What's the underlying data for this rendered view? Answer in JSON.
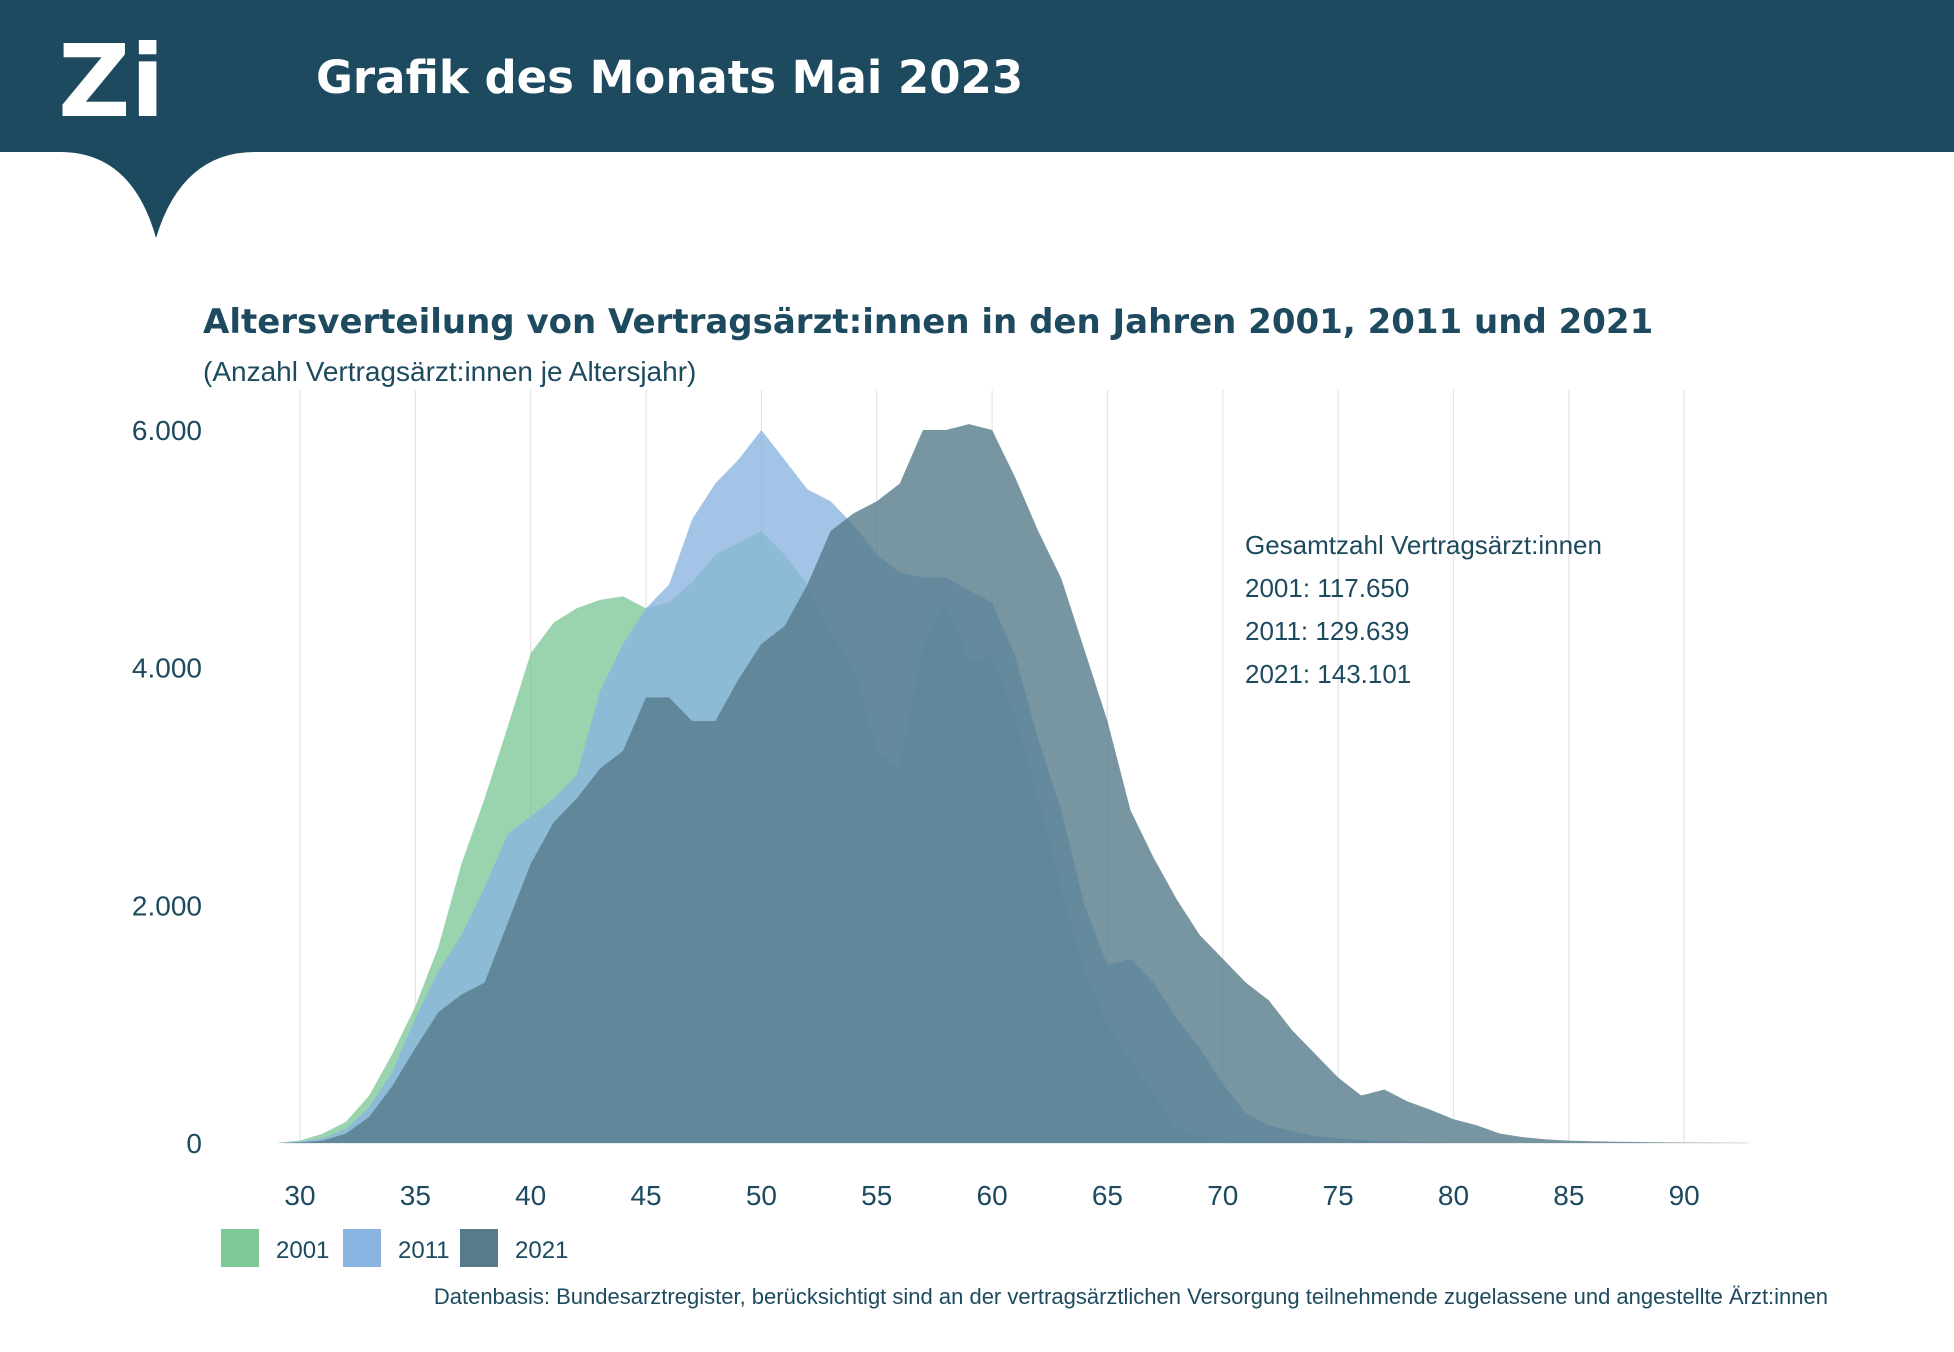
{
  "header": {
    "logo": "Zi",
    "title": "Grafik des Monats Mai 2023"
  },
  "chart_data": {
    "type": "area",
    "title": "Altersverteilung von Vertragsärzt:innen in den Jahren 2001, 2011 und 2021",
    "subtitle": "(Anzahl Vertragsärzt:innen je Altersjahr)",
    "xlabel": "",
    "ylabel": "",
    "xlim": [
      28,
      93
    ],
    "ylim": [
      0,
      6000
    ],
    "x_ticks": [
      30,
      35,
      40,
      45,
      50,
      55,
      60,
      65,
      70,
      75,
      80,
      85,
      90
    ],
    "y_ticks": [
      0,
      2000,
      4000,
      6000
    ],
    "y_tick_labels": [
      "0",
      "2.000",
      "4.000",
      "6.000"
    ],
    "x": [
      29,
      30,
      31,
      32,
      33,
      34,
      35,
      36,
      37,
      38,
      39,
      40,
      41,
      42,
      43,
      44,
      45,
      46,
      47,
      48,
      49,
      50,
      51,
      52,
      53,
      54,
      55,
      56,
      57,
      58,
      59,
      60,
      61,
      62,
      63,
      64,
      65,
      66,
      67,
      68,
      69,
      70,
      71,
      72,
      73,
      74,
      75,
      76,
      77,
      78,
      79,
      80,
      81,
      82,
      83,
      84,
      85,
      86,
      87,
      88,
      89,
      90,
      91,
      92,
      93
    ],
    "series": [
      {
        "name": "2001",
        "color": "#7ec897",
        "values": [
          0,
          20,
          80,
          180,
          400,
          750,
          1150,
          1650,
          2350,
          2900,
          3500,
          4120,
          4380,
          4500,
          4570,
          4600,
          4500,
          4550,
          4720,
          4950,
          5050,
          5150,
          4950,
          4700,
          4300,
          4000,
          3300,
          3150,
          4200,
          4550,
          4050,
          4100,
          3600,
          2900,
          2150,
          1450,
          1000,
          700,
          420,
          120,
          60,
          40,
          25,
          20,
          15,
          10,
          5,
          5,
          3,
          2,
          1,
          0,
          0,
          0,
          0,
          0,
          0,
          0,
          0,
          0,
          0,
          0,
          0,
          0,
          0
        ]
      },
      {
        "name": "2011",
        "color": "#89b3e0",
        "values": [
          0,
          10,
          40,
          120,
          300,
          600,
          1050,
          1450,
          1750,
          2150,
          2600,
          2750,
          2900,
          3100,
          3800,
          4200,
          4500,
          4700,
          5250,
          5550,
          5750,
          6000,
          5750,
          5500,
          5400,
          5200,
          4950,
          4800,
          4760,
          4760,
          4650,
          4550,
          4100,
          3400,
          2800,
          2000,
          1500,
          1550,
          1350,
          1050,
          800,
          500,
          250,
          150,
          100,
          60,
          40,
          25,
          15,
          10,
          8,
          5,
          3,
          2,
          1,
          0,
          0,
          0,
          0,
          0,
          0,
          0,
          0,
          0,
          0
        ]
      },
      {
        "name": "2021",
        "color": "#567c8b",
        "values": [
          0,
          5,
          20,
          80,
          220,
          480,
          800,
          1100,
          1250,
          1350,
          1850,
          2350,
          2700,
          2900,
          3150,
          3300,
          3750,
          3750,
          3550,
          3550,
          3900,
          4200,
          4350,
          4700,
          5150,
          5300,
          5400,
          5550,
          6000,
          6000,
          6050,
          6000,
          5600,
          5150,
          4750,
          4150,
          3550,
          2800,
          2400,
          2050,
          1750,
          1550,
          1350,
          1200,
          950,
          750,
          550,
          400,
          450,
          350,
          280,
          200,
          150,
          80,
          50,
          30,
          20,
          15,
          10,
          8,
          5,
          3,
          2,
          1,
          0
        ]
      }
    ],
    "legend": [
      "2001",
      "2011",
      "2021"
    ],
    "legend_position": "bottom-left",
    "grid": "vertical",
    "annotation": {
      "heading": "Gesamtzahl Vertragsärzt:innen",
      "lines": [
        "2001: 117.650",
        "2011: 129.639",
        "2021: 143.101"
      ]
    },
    "source": "Datenbasis: Bundesarztregister, berücksichtigt sind an der vertragsärztlichen Versorgung teilnehmende zugelassene und angestellte Ärzt:innen"
  },
  "colors": {
    "header_bg": "#1d4a5e",
    "text": "#1d4a5e",
    "grid": "#e4e4e4"
  }
}
